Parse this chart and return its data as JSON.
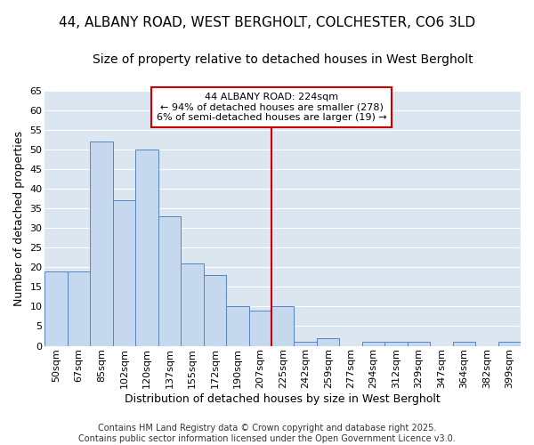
{
  "title1": "44, ALBANY ROAD, WEST BERGHOLT, COLCHESTER, CO6 3LD",
  "title2": "Size of property relative to detached houses in West Bergholt",
  "xlabel": "Distribution of detached houses by size in West Bergholt",
  "ylabel": "Number of detached properties",
  "categories": [
    "50sqm",
    "67sqm",
    "85sqm",
    "102sqm",
    "120sqm",
    "137sqm",
    "155sqm",
    "172sqm",
    "190sqm",
    "207sqm",
    "225sqm",
    "242sqm",
    "259sqm",
    "277sqm",
    "294sqm",
    "312sqm",
    "329sqm",
    "347sqm",
    "364sqm",
    "382sqm",
    "399sqm"
  ],
  "values": [
    19,
    19,
    52,
    37,
    50,
    33,
    21,
    18,
    10,
    9,
    10,
    1,
    2,
    0,
    1,
    1,
    1,
    0,
    1,
    0,
    1
  ],
  "bar_color": "#c5d8ee",
  "bar_edge_color": "#5585c5",
  "plot_bg_color": "#dce6f1",
  "fig_bg_color": "#ffffff",
  "grid_color": "#ffffff",
  "vline_x": 9.5,
  "vline_color": "#cc0000",
  "annotation_text": "44 ALBANY ROAD: 224sqm\n← 94% of detached houses are smaller (278)\n6% of semi-detached houses are larger (19) →",
  "annotation_box_color": "#ffffff",
  "annotation_box_edge_color": "#cc0000",
  "ylim": [
    0,
    65
  ],
  "yticks": [
    0,
    5,
    10,
    15,
    20,
    25,
    30,
    35,
    40,
    45,
    50,
    55,
    60,
    65
  ],
  "footer": "Contains HM Land Registry data © Crown copyright and database right 2025.\nContains public sector information licensed under the Open Government Licence v3.0.",
  "title_fontsize": 11,
  "subtitle_fontsize": 10,
  "axis_label_fontsize": 9,
  "tick_fontsize": 8,
  "footer_fontsize": 7
}
